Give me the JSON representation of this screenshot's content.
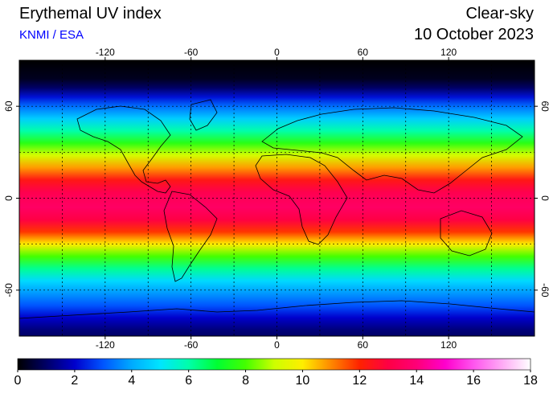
{
  "header": {
    "title": "Erythemal UV index",
    "credit": "KNMI / ESA",
    "subtitle": "Clear-sky",
    "date": "10 October 2023"
  },
  "map": {
    "projection": "equirectangular",
    "lon_range": [
      -180,
      180
    ],
    "lat_range": [
      -90,
      90
    ],
    "grid": true,
    "lon_ticks": [
      -120,
      -60,
      0,
      60,
      120
    ],
    "lon_tick_labels": [
      "-120",
      "-60",
      "0",
      "60",
      "120"
    ],
    "lat_ticks": [
      60,
      0,
      -60
    ],
    "lat_tick_labels": [
      "60",
      "0",
      "-60"
    ]
  },
  "colorbar": {
    "min": 0,
    "max": 18,
    "ticks": [
      0,
      2,
      4,
      6,
      8,
      10,
      12,
      14,
      16,
      18
    ],
    "tick_labels": [
      "0",
      "2",
      "4",
      "6",
      "8",
      "10",
      "12",
      "14",
      "16",
      "18"
    ],
    "stops": [
      {
        "value": 0,
        "color": "#000000"
      },
      {
        "value": 1,
        "color": "#000066"
      },
      {
        "value": 2,
        "color": "#0000cc"
      },
      {
        "value": 3,
        "color": "#0055ff"
      },
      {
        "value": 4,
        "color": "#00aaff"
      },
      {
        "value": 5,
        "color": "#00e5ff"
      },
      {
        "value": 6,
        "color": "#00ffaa"
      },
      {
        "value": 7,
        "color": "#00ff33"
      },
      {
        "value": 8,
        "color": "#44ff00"
      },
      {
        "value": 9,
        "color": "#ccff00"
      },
      {
        "value": 10,
        "color": "#ffee00"
      },
      {
        "value": 11,
        "color": "#ff8800"
      },
      {
        "value": 12,
        "color": "#ff2200"
      },
      {
        "value": 13,
        "color": "#ff0044"
      },
      {
        "value": 14,
        "color": "#ff0077"
      },
      {
        "value": 15,
        "color": "#ff00cc"
      },
      {
        "value": 16,
        "color": "#ff55ee"
      },
      {
        "value": 17,
        "color": "#ffaaf5"
      },
      {
        "value": 18,
        "color": "#ffffff"
      }
    ]
  },
  "uv_profile": [
    {
      "lat": 90,
      "uv": 0
    },
    {
      "lat": 78,
      "uv": 0.3
    },
    {
      "lat": 72,
      "uv": 1.0
    },
    {
      "lat": 66,
      "uv": 2.2
    },
    {
      "lat": 60,
      "uv": 3.3
    },
    {
      "lat": 52,
      "uv": 4.6
    },
    {
      "lat": 44,
      "uv": 6.0
    },
    {
      "lat": 36,
      "uv": 7.6
    },
    {
      "lat": 28,
      "uv": 9.2
    },
    {
      "lat": 20,
      "uv": 10.8
    },
    {
      "lat": 12,
      "uv": 12.3
    },
    {
      "lat": 4,
      "uv": 13.2
    },
    {
      "lat": 0,
      "uv": 13.4
    },
    {
      "lat": -6,
      "uv": 13.6
    },
    {
      "lat": -14,
      "uv": 13.0
    },
    {
      "lat": -22,
      "uv": 11.8
    },
    {
      "lat": -30,
      "uv": 10.0
    },
    {
      "lat": -38,
      "uv": 8.0
    },
    {
      "lat": -46,
      "uv": 6.2
    },
    {
      "lat": -54,
      "uv": 4.8
    },
    {
      "lat": -62,
      "uv": 3.8
    },
    {
      "lat": -70,
      "uv": 3.0
    },
    {
      "lat": -78,
      "uv": 2.0
    },
    {
      "lat": -86,
      "uv": 1.2
    },
    {
      "lat": -90,
      "uv": 1.0
    }
  ]
}
